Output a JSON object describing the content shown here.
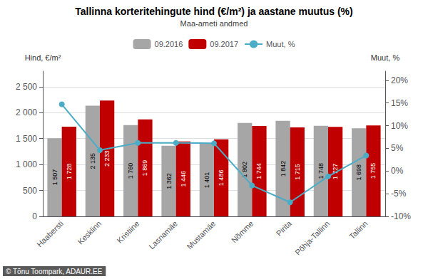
{
  "chart_data": {
    "type": "bar",
    "title": "Tallinna korteritehingute hind (€/m²) ja aastane muutus (%)",
    "subtitle": "Maa-ameti andmed",
    "categories": [
      "Haabersti",
      "Kesklinn",
      "Kristiine",
      "Lasnamäe",
      "Mustamäe",
      "Nõmme",
      "Pirita",
      "Põhja-Tallinn",
      "Tallinn"
    ],
    "series": [
      {
        "name": "09.2016",
        "color": "#a6a6a6",
        "data_labels": true,
        "values": [
          1507,
          2135,
          1760,
          1362,
          1401,
          1802,
          1842,
          1748,
          1698
        ],
        "value_labels": [
          "1 507",
          "2 135",
          "1 760",
          "1 362",
          "1 401",
          "1 802",
          "1 842",
          "1 748",
          "1 698"
        ]
      },
      {
        "name": "09.2017",
        "color": "#c00000",
        "data_labels": true,
        "values": [
          1728,
          2233,
          1869,
          1446,
          1486,
          1744,
          1715,
          1727,
          1755
        ],
        "value_labels": [
          "1 728",
          "2 233",
          "1 869",
          "1 446",
          "1 486",
          "1 744",
          "1 715",
          "1 727",
          "1 755"
        ]
      },
      {
        "name": "Muut, %",
        "type": "line",
        "axis": "y2",
        "color": "#4bacc6",
        "marker": "circle",
        "values": [
          14.7,
          4.6,
          6.2,
          6.2,
          6.1,
          -3.2,
          -6.9,
          -1.2,
          3.4
        ]
      }
    ],
    "ylabel": "Hind, €/m²",
    "y2label": "Muut, %",
    "ylim": [
      0,
      2800
    ],
    "yticks": [
      0,
      500,
      {
        "value": 1000,
        "label": "1 000"
      },
      {
        "value": 1500,
        "label": "1 500"
      },
      {
        "value": 2000,
        "label": "2 000"
      },
      {
        "value": 2500,
        "label": "2 500"
      }
    ],
    "y2lim": [
      -10,
      22
    ],
    "y2ticks": [
      {
        "value": -10,
        "label": "-10%"
      },
      {
        "value": -5,
        "label": "-5%"
      },
      {
        "value": 0,
        "label": "0%"
      },
      {
        "value": 5,
        "label": "5%"
      },
      {
        "value": 10,
        "label": "10%"
      },
      {
        "value": 15,
        "label": "15%"
      },
      {
        "value": 20,
        "label": "20%"
      }
    ],
    "grid": true,
    "legend": "top",
    "annotations": [
      "© Tõnu Toompark, ADAUR.EE"
    ]
  }
}
